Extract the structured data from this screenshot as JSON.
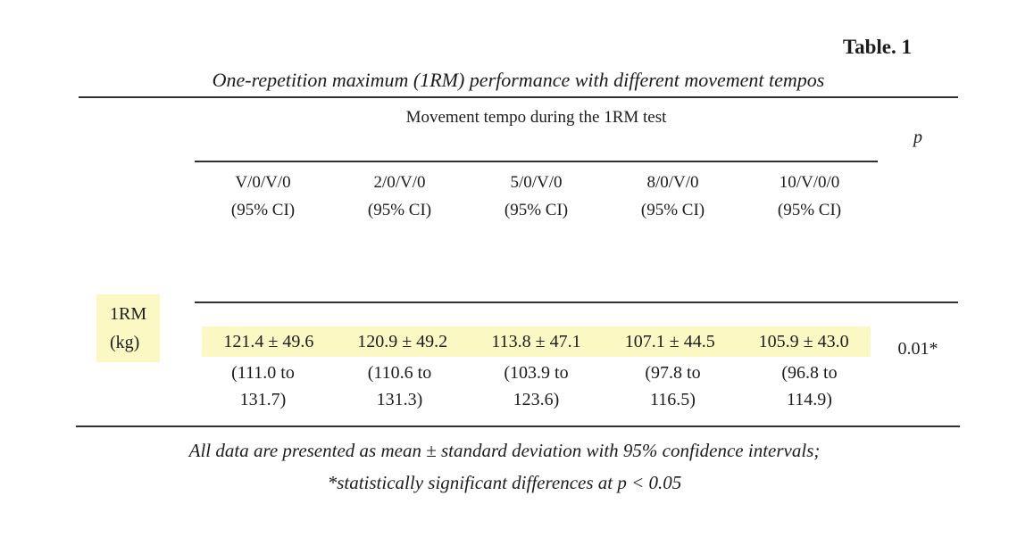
{
  "caption": "Table. 1",
  "title": "One-repetition maximum (1RM) performance with different movement tempos",
  "header": {
    "group_label": "Movement tempo during the 1RM test",
    "p_label": "p",
    "columns": [
      {
        "tempo": "V/0/V/0",
        "ci": "(95% CI)"
      },
      {
        "tempo": "2/0/V/0",
        "ci": "(95% CI)"
      },
      {
        "tempo": "5/0/V/0",
        "ci": "(95% CI)"
      },
      {
        "tempo": "8/0/V/0",
        "ci": "(95% CI)"
      },
      {
        "tempo": "10/V/0/0",
        "ci": "(95% CI)"
      }
    ]
  },
  "row": {
    "label_line1": "1RM",
    "label_line2": "(kg)",
    "cells": [
      {
        "mean": "121.4 ± 49.6",
        "ci1": "(111.0 to",
        "ci2": "131.7)"
      },
      {
        "mean": "120.9 ± 49.2",
        "ci1": "(110.6 to",
        "ci2": "131.3)"
      },
      {
        "mean": "113.8 ± 47.1",
        "ci1": "(103.9 to",
        "ci2": "123.6)"
      },
      {
        "mean": "107.1 ± 44.5",
        "ci1": "(97.8 to",
        "ci2": "116.5)"
      },
      {
        "mean": "105.9 ± 43.0",
        "ci1": "(96.8 to",
        "ci2": "114.9)"
      }
    ],
    "p_value": "0.01*"
  },
  "footnotes": {
    "line1": "All data are presented as mean ± standard deviation with 95% confidence intervals;",
    "line2": "*statistically significant differences at p < 0.05"
  },
  "colors": {
    "highlight": "#fbf8c3",
    "rule": "#2f2f2f",
    "text": "#1c1c1c"
  },
  "chart_data": {
    "type": "table",
    "title": "One-repetition maximum (1RM) performance with different movement tempos",
    "columns": [
      "V/0/V/0 (95% CI)",
      "2/0/V/0 (95% CI)",
      "5/0/V/0 (95% CI)",
      "8/0/V/0 (95% CI)",
      "10/V/0/0 (95% CI)",
      "p"
    ],
    "rows": [
      {
        "label": "1RM (kg)",
        "means": [
          121.4,
          120.9,
          113.8,
          107.1,
          105.9
        ],
        "sds": [
          49.6,
          49.2,
          47.1,
          44.5,
          43.0
        ],
        "ci_low": [
          111.0,
          110.6,
          103.9,
          97.8,
          96.8
        ],
        "ci_high": [
          131.7,
          131.3,
          123.6,
          116.5,
          114.9
        ],
        "p": "0.01*"
      }
    ]
  }
}
